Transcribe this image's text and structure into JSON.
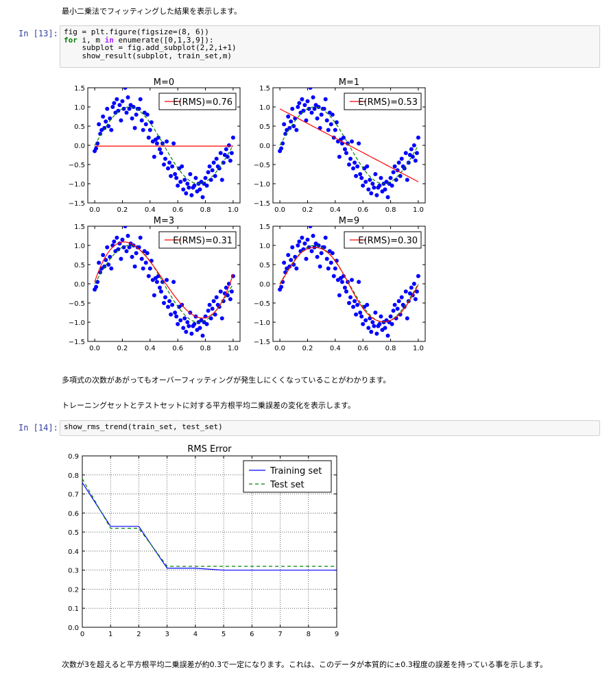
{
  "cells": {
    "md1": "最小二乗法でフィッティングした結果を表示します。",
    "prompt13": "In [13]:",
    "code13": {
      "line1": "fig = plt.figure(figsize=(8, 6))",
      "line2_kw1": "for",
      "line2_mid": " i, m ",
      "line2_kw2": "in",
      "line2_rest": " enumerate([0,1,3,9]):",
      "line3": "    subplot = fig.add_subplot(2,2,i+1)",
      "line4": "    show_result(subplot, train_set,m)"
    },
    "md2": "多項式の次数があがってもオーバーフィッティングが発生しにくくなっていることがわかります。",
    "md3": "トレーニングセットとテストセットに対する平方根平均二乗誤差の変化を表示します。",
    "prompt14": "In [14]:",
    "code14": "show_rms_trend(train_set, test_set)",
    "md4": "次数が3を超えると平方根平均二乗誤差が約0.3で一定になります。これは、このデータが本質的に±0.3程度の誤差を持っている事を示します。"
  },
  "colors": {
    "points": "#0000ff",
    "fit": "#ff0000",
    "truth": "#008000",
    "training": "#0000ff",
    "test": "#008000"
  },
  "chart_data": [
    {
      "type": "scatter",
      "title": "M=0",
      "legend": "E(RMS)=0.76",
      "legend_position": "top-right",
      "xlim": [
        -0.05,
        1.05
      ],
      "ylim": [
        -1.5,
        1.5
      ],
      "xticks": [
        "0.0",
        "0.2",
        "0.4",
        "0.6",
        "0.8",
        "1.0"
      ],
      "yticks": [
        "1.5",
        "1.0",
        "0.5",
        "0.0",
        "−0.5",
        "−1.0",
        "−1.5"
      ],
      "fit_type": "constant",
      "fit_value": -0.02
    },
    {
      "type": "scatter",
      "title": "M=1",
      "legend": "E(RMS)=0.53",
      "legend_position": "top-right",
      "xlim": [
        -0.05,
        1.05
      ],
      "ylim": [
        -1.5,
        1.5
      ],
      "xticks": [
        "0.0",
        "0.2",
        "0.4",
        "0.6",
        "0.8",
        "1.0"
      ],
      "yticks": [
        "1.5",
        "1.0",
        "0.5",
        "0.0",
        "−0.5",
        "−1.0",
        "−1.5"
      ],
      "fit_type": "linear",
      "fit_start": 0.95,
      "fit_end": -0.95
    },
    {
      "type": "scatter",
      "title": "M=3",
      "legend": "E(RMS)=0.31",
      "legend_position": "top-right",
      "xlim": [
        -0.05,
        1.05
      ],
      "ylim": [
        -1.5,
        1.5
      ],
      "xticks": [
        "0.0",
        "0.2",
        "0.4",
        "0.6",
        "0.8",
        "1.0"
      ],
      "yticks": [
        "1.5",
        "1.0",
        "0.5",
        "0.0",
        "−0.5",
        "−1.0",
        "−1.5"
      ],
      "fit_type": "cubic"
    },
    {
      "type": "scatter",
      "title": "M=9",
      "legend": "E(RMS)=0.30",
      "legend_position": "top-right",
      "xlim": [
        -0.05,
        1.05
      ],
      "ylim": [
        -1.5,
        1.5
      ],
      "xticks": [
        "0.0",
        "0.2",
        "0.4",
        "0.6",
        "0.8",
        "1.0"
      ],
      "yticks": [
        "1.5",
        "1.0",
        "0.5",
        "0.0",
        "−0.5",
        "−1.0",
        "−1.5"
      ],
      "fit_type": "poly9"
    },
    {
      "type": "line",
      "title": "RMS Error",
      "xlim": [
        0,
        9
      ],
      "ylim": [
        0,
        0.9
      ],
      "xticks": [
        "0",
        "1",
        "2",
        "3",
        "4",
        "5",
        "6",
        "7",
        "8",
        "9"
      ],
      "yticks": [
        "0.9",
        "0.8",
        "0.7",
        "0.6",
        "0.5",
        "0.4",
        "0.3",
        "0.2",
        "0.1",
        "0.0"
      ],
      "grid": true,
      "legend_position": "top-right",
      "x": [
        0,
        1,
        2,
        3,
        4,
        5,
        6,
        7,
        8,
        9
      ],
      "series": [
        {
          "name": "Training set",
          "values": [
            0.76,
            0.53,
            0.53,
            0.31,
            0.31,
            0.3,
            0.3,
            0.3,
            0.3,
            0.3
          ]
        },
        {
          "name": "Test set",
          "values": [
            0.78,
            0.52,
            0.52,
            0.32,
            0.32,
            0.32,
            0.32,
            0.32,
            0.32,
            0.32
          ]
        }
      ]
    }
  ],
  "scatter_points": [
    [
      0.0,
      -0.15
    ],
    [
      0.01,
      -0.08
    ],
    [
      0.02,
      0.05
    ],
    [
      0.03,
      0.55
    ],
    [
      0.04,
      0.3
    ],
    [
      0.05,
      0.4
    ],
    [
      0.06,
      0.75
    ],
    [
      0.07,
      0.45
    ],
    [
      0.08,
      0.62
    ],
    [
      0.09,
      0.95
    ],
    [
      0.1,
      0.5
    ],
    [
      0.11,
      0.7
    ],
    [
      0.12,
      0.4
    ],
    [
      0.13,
      1.0
    ],
    [
      0.14,
      1.1
    ],
    [
      0.15,
      0.85
    ],
    [
      0.16,
      1.2
    ],
    [
      0.17,
      0.9
    ],
    [
      0.18,
      1.05
    ],
    [
      0.19,
      0.65
    ],
    [
      0.2,
      1.15
    ],
    [
      0.21,
      0.95
    ],
    [
      0.22,
      1.5
    ],
    [
      0.23,
      0.85
    ],
    [
      0.24,
      1.25
    ],
    [
      0.25,
      0.95
    ],
    [
      0.26,
      1.05
    ],
    [
      0.27,
      0.7
    ],
    [
      0.28,
      1.0
    ],
    [
      0.29,
      0.45
    ],
    [
      0.3,
      0.8
    ],
    [
      0.31,
      0.95
    ],
    [
      0.32,
      0.95
    ],
    [
      0.33,
      1.2
    ],
    [
      0.34,
      0.65
    ],
    [
      0.35,
      0.4
    ],
    [
      0.36,
      0.85
    ],
    [
      0.37,
      0.55
    ],
    [
      0.38,
      0.8
    ],
    [
      0.39,
      0.2
    ],
    [
      0.4,
      0.4
    ],
    [
      0.41,
      0.6
    ],
    [
      0.42,
      0.1
    ],
    [
      0.43,
      -0.3
    ],
    [
      0.44,
      0.15
    ],
    [
      0.45,
      0.05
    ],
    [
      0.46,
      0.2
    ],
    [
      0.47,
      -0.1
    ],
    [
      0.48,
      -0.2
    ],
    [
      0.49,
      0.05
    ],
    [
      0.5,
      -0.5
    ],
    [
      0.51,
      -0.35
    ],
    [
      0.52,
      0.1
    ],
    [
      0.53,
      -0.6
    ],
    [
      0.54,
      -0.45
    ],
    [
      0.55,
      -0.8
    ],
    [
      0.56,
      -0.55
    ],
    [
      0.57,
      0.05
    ],
    [
      0.58,
      -0.75
    ],
    [
      0.59,
      -0.85
    ],
    [
      0.6,
      -1.05
    ],
    [
      0.61,
      -0.6
    ],
    [
      0.62,
      -0.95
    ],
    [
      0.63,
      -0.55
    ],
    [
      0.64,
      -1.15
    ],
    [
      0.65,
      -0.9
    ],
    [
      0.66,
      -1.25
    ],
    [
      0.67,
      -1.0
    ],
    [
      0.68,
      -1.1
    ],
    [
      0.69,
      -0.75
    ],
    [
      0.7,
      -1.3
    ],
    [
      0.71,
      -1.1
    ],
    [
      0.72,
      -1.05
    ],
    [
      0.73,
      -0.85
    ],
    [
      0.74,
      -1.2
    ],
    [
      0.75,
      -1.0
    ],
    [
      0.76,
      -1.15
    ],
    [
      0.77,
      -0.95
    ],
    [
      0.78,
      -1.35
    ],
    [
      0.79,
      -1.0
    ],
    [
      0.8,
      -0.85
    ],
    [
      0.81,
      -1.05
    ],
    [
      0.82,
      -0.7
    ],
    [
      0.83,
      -0.55
    ],
    [
      0.84,
      -0.9
    ],
    [
      0.85,
      -0.65
    ],
    [
      0.86,
      -0.45
    ],
    [
      0.87,
      -0.8
    ],
    [
      0.88,
      -0.35
    ],
    [
      0.89,
      -0.55
    ],
    [
      0.9,
      -0.6
    ],
    [
      0.91,
      -0.2
    ],
    [
      0.92,
      -0.9
    ],
    [
      0.93,
      -0.45
    ],
    [
      0.94,
      -0.25
    ],
    [
      0.95,
      -0.1
    ],
    [
      0.96,
      -0.3
    ],
    [
      0.97,
      0.0
    ],
    [
      0.98,
      -0.4
    ],
    [
      0.99,
      -0.2
    ],
    [
      1.0,
      0.2
    ]
  ]
}
